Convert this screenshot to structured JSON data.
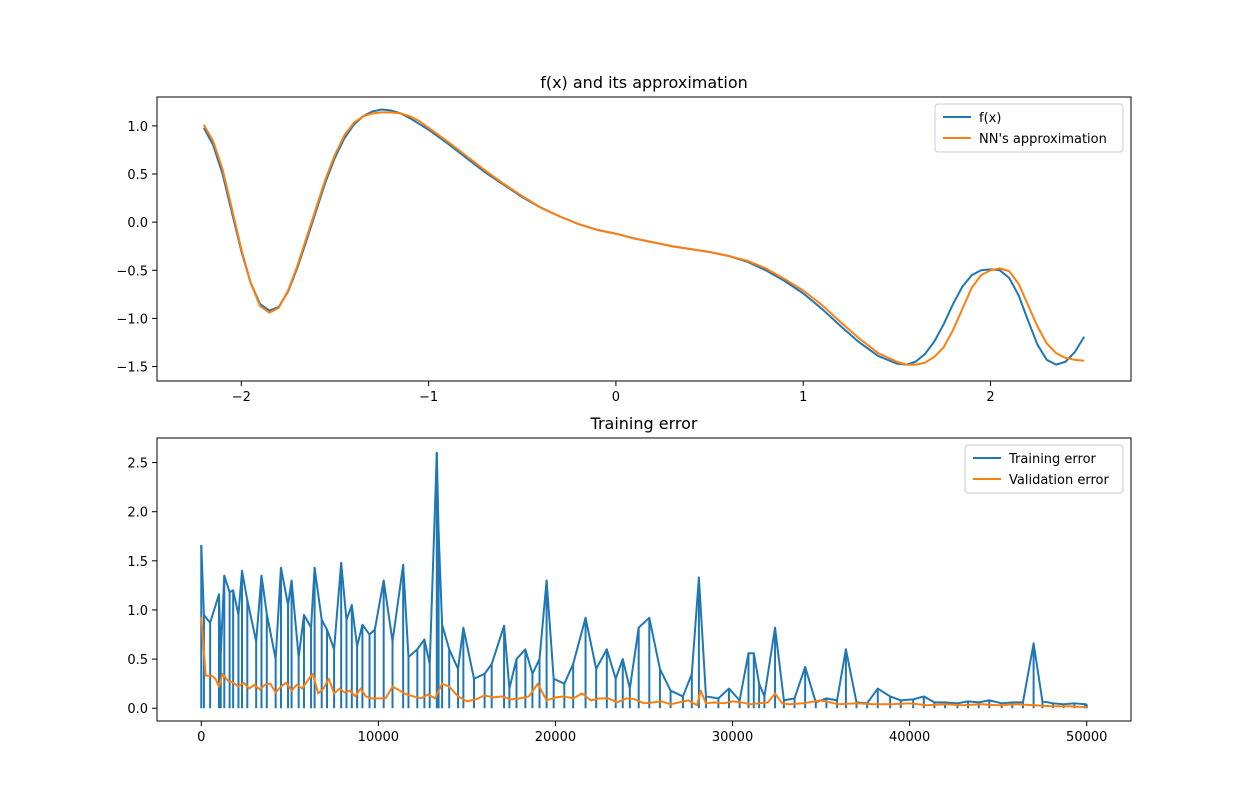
{
  "chart_data": [
    {
      "type": "line",
      "title": "f(x) and its approximation",
      "xlabel": "",
      "ylabel": "",
      "xlim": [
        -2.45,
        2.75
      ],
      "ylim": [
        -1.65,
        1.3
      ],
      "xticks": [
        -2,
        -1,
        0,
        1,
        2
      ],
      "xtick_labels": [
        "−2",
        "−1",
        "0",
        "1",
        "2"
      ],
      "yticks": [
        1.0,
        0.5,
        0.0,
        -0.5,
        -1.0,
        -1.5
      ],
      "ytick_labels": [
        "1.0",
        "0.5",
        "0.0",
        "−0.5",
        "−1.0",
        "−1.5"
      ],
      "legend_position": "top-right",
      "grid": false,
      "series": [
        {
          "name": "f(x)",
          "color": "#1f77b4",
          "x": [
            -2.2,
            -2.15,
            -2.1,
            -2.05,
            -2.0,
            -1.95,
            -1.9,
            -1.85,
            -1.8,
            -1.75,
            -1.7,
            -1.65,
            -1.6,
            -1.55,
            -1.5,
            -1.45,
            -1.4,
            -1.35,
            -1.3,
            -1.25,
            -1.2,
            -1.15,
            -1.1,
            -1.05,
            -1.0,
            -0.9,
            -0.8,
            -0.7,
            -0.6,
            -0.5,
            -0.4,
            -0.3,
            -0.2,
            -0.1,
            0.0,
            0.1,
            0.2,
            0.3,
            0.4,
            0.5,
            0.6,
            0.7,
            0.8,
            0.9,
            1.0,
            1.1,
            1.2,
            1.3,
            1.4,
            1.5,
            1.55,
            1.6,
            1.65,
            1.7,
            1.75,
            1.8,
            1.85,
            1.9,
            1.95,
            2.0,
            2.05,
            2.1,
            2.15,
            2.2,
            2.25,
            2.3,
            2.35,
            2.4,
            2.45,
            2.5
          ],
          "y": [
            0.98,
            0.8,
            0.5,
            0.1,
            -0.3,
            -0.63,
            -0.85,
            -0.92,
            -0.88,
            -0.72,
            -0.47,
            -0.18,
            0.12,
            0.42,
            0.67,
            0.87,
            1.01,
            1.1,
            1.15,
            1.17,
            1.16,
            1.13,
            1.08,
            1.02,
            0.96,
            0.82,
            0.67,
            0.52,
            0.39,
            0.26,
            0.15,
            0.06,
            -0.02,
            -0.08,
            -0.12,
            -0.17,
            -0.21,
            -0.25,
            -0.28,
            -0.31,
            -0.35,
            -0.41,
            -0.5,
            -0.61,
            -0.74,
            -0.9,
            -1.08,
            -1.25,
            -1.39,
            -1.47,
            -1.48,
            -1.45,
            -1.37,
            -1.24,
            -1.06,
            -0.85,
            -0.67,
            -0.55,
            -0.5,
            -0.49,
            -0.5,
            -0.58,
            -0.76,
            -1.02,
            -1.27,
            -1.43,
            -1.48,
            -1.45,
            -1.35,
            -1.19
          ]
        },
        {
          "name": "NN's approximation",
          "color": "#ff7f0e",
          "x": [
            -2.2,
            -2.15,
            -2.1,
            -2.05,
            -2.0,
            -1.95,
            -1.9,
            -1.85,
            -1.8,
            -1.75,
            -1.7,
            -1.65,
            -1.6,
            -1.55,
            -1.5,
            -1.45,
            -1.4,
            -1.35,
            -1.3,
            -1.25,
            -1.2,
            -1.15,
            -1.1,
            -1.05,
            -1.0,
            -0.9,
            -0.8,
            -0.7,
            -0.6,
            -0.5,
            -0.4,
            -0.3,
            -0.2,
            -0.1,
            0.0,
            0.1,
            0.2,
            0.3,
            0.4,
            0.5,
            0.6,
            0.7,
            0.8,
            0.9,
            1.0,
            1.1,
            1.2,
            1.3,
            1.4,
            1.5,
            1.55,
            1.6,
            1.65,
            1.7,
            1.75,
            1.8,
            1.85,
            1.9,
            1.95,
            2.0,
            2.05,
            2.1,
            2.15,
            2.2,
            2.25,
            2.3,
            2.35,
            2.4,
            2.45,
            2.5
          ],
          "y": [
            1.01,
            0.84,
            0.55,
            0.14,
            -0.28,
            -0.63,
            -0.87,
            -0.94,
            -0.89,
            -0.71,
            -0.45,
            -0.15,
            0.15,
            0.45,
            0.7,
            0.9,
            1.03,
            1.1,
            1.13,
            1.14,
            1.14,
            1.13,
            1.1,
            1.05,
            0.98,
            0.84,
            0.69,
            0.54,
            0.4,
            0.27,
            0.15,
            0.06,
            -0.02,
            -0.08,
            -0.12,
            -0.17,
            -0.21,
            -0.25,
            -0.28,
            -0.31,
            -0.35,
            -0.4,
            -0.48,
            -0.59,
            -0.71,
            -0.86,
            -1.04,
            -1.21,
            -1.36,
            -1.45,
            -1.48,
            -1.48,
            -1.46,
            -1.4,
            -1.3,
            -1.12,
            -0.9,
            -0.68,
            -0.55,
            -0.5,
            -0.48,
            -0.51,
            -0.64,
            -0.86,
            -1.08,
            -1.26,
            -1.36,
            -1.41,
            -1.43,
            -1.44
          ]
        }
      ]
    },
    {
      "type": "line",
      "title": "Training error",
      "xlabel": "",
      "ylabel": "",
      "xlim": [
        -2500,
        52500
      ],
      "ylim": [
        -0.13,
        2.75
      ],
      "xticks": [
        0,
        10000,
        20000,
        30000,
        40000,
        50000
      ],
      "xtick_labels": [
        "0",
        "10000",
        "20000",
        "30000",
        "40000",
        "50000"
      ],
      "yticks": [
        0.0,
        0.5,
        1.0,
        1.5,
        2.0,
        2.5
      ],
      "ytick_labels": [
        "0.0",
        "0.5",
        "1.0",
        "1.5",
        "2.0",
        "2.5"
      ],
      "legend_position": "top-right",
      "grid": false,
      "series": [
        {
          "name": "Training error",
          "color": "#1f77b4",
          "x": [
            0,
            150,
            500,
            1000,
            1100,
            1300,
            1600,
            1800,
            2100,
            2300,
            2600,
            3100,
            3400,
            3700,
            4200,
            4500,
            4900,
            5100,
            5500,
            5800,
            6200,
            6400,
            6800,
            7100,
            7500,
            7900,
            8200,
            8500,
            8800,
            9100,
            9500,
            9800,
            10300,
            10800,
            11400,
            11700,
            12200,
            12600,
            12900,
            13300,
            13400,
            13600,
            14000,
            14500,
            14800,
            15400,
            16000,
            16400,
            17100,
            17400,
            17800,
            18300,
            18700,
            19100,
            19500,
            19900,
            20500,
            21000,
            21700,
            22300,
            22900,
            23400,
            23800,
            24200,
            24700,
            25300,
            25900,
            26500,
            27200,
            27700,
            28100,
            28500,
            29200,
            29800,
            30400,
            30900,
            31200,
            31500,
            31800,
            32400,
            32900,
            33500,
            34100,
            34700,
            35300,
            35900,
            36400,
            37000,
            37600,
            38200,
            38900,
            39500,
            40200,
            40800,
            41400,
            42000,
            42700,
            43300,
            43900,
            44500,
            45200,
            45800,
            46400,
            47000,
            47500,
            48100,
            48700,
            49300,
            49900,
            50000
          ],
          "y": [
            1.66,
            0.95,
            0.87,
            1.16,
            0.55,
            1.35,
            1.18,
            1.2,
            0.95,
            1.4,
            1.1,
            0.68,
            1.35,
            0.96,
            0.5,
            1.43,
            1.05,
            1.3,
            0.52,
            0.95,
            0.82,
            1.43,
            0.9,
            0.8,
            0.6,
            1.48,
            0.9,
            1.05,
            0.63,
            0.85,
            0.75,
            0.8,
            1.3,
            0.68,
            1.46,
            0.52,
            0.6,
            0.7,
            0.45,
            2.6,
            1.8,
            0.85,
            0.6,
            0.4,
            0.82,
            0.3,
            0.35,
            0.45,
            0.84,
            0.2,
            0.5,
            0.6,
            0.35,
            0.5,
            1.3,
            0.3,
            0.25,
            0.45,
            0.92,
            0.4,
            0.6,
            0.3,
            0.5,
            0.2,
            0.82,
            0.92,
            0.4,
            0.18,
            0.12,
            0.35,
            1.33,
            0.12,
            0.1,
            0.2,
            0.08,
            0.56,
            0.56,
            0.25,
            0.12,
            0.82,
            0.08,
            0.1,
            0.42,
            0.06,
            0.1,
            0.08,
            0.6,
            0.06,
            0.05,
            0.2,
            0.12,
            0.08,
            0.09,
            0.12,
            0.06,
            0.06,
            0.05,
            0.07,
            0.06,
            0.08,
            0.05,
            0.06,
            0.06,
            0.66,
            0.07,
            0.05,
            0.04,
            0.05,
            0.04,
            0.04
          ]
        },
        {
          "name": "Validation error",
          "color": "#ff7f0e",
          "x": [
            0,
            250,
            600,
            800,
            1000,
            1200,
            1500,
            1800,
            2100,
            2400,
            2700,
            3000,
            3300,
            3600,
            3900,
            4200,
            4500,
            4800,
            5100,
            5400,
            5700,
            6000,
            6300,
            6600,
            6900,
            7200,
            7500,
            7800,
            8100,
            8400,
            8700,
            9000,
            9300,
            9600,
            10000,
            10400,
            10800,
            11200,
            11600,
            12000,
            12400,
            12800,
            13200,
            13600,
            14000,
            14500,
            15000,
            15500,
            16000,
            16500,
            17000,
            17500,
            18000,
            18500,
            19000,
            19500,
            20000,
            20500,
            21000,
            21500,
            22000,
            22500,
            23000,
            23500,
            24000,
            24500,
            25000,
            25500,
            26000,
            26500,
            27000,
            27500,
            28000,
            28200,
            28500,
            29000,
            29500,
            30000,
            30500,
            31000,
            31500,
            32000,
            32400,
            32800,
            33200,
            34000,
            35000,
            36000,
            37000,
            38000,
            39000,
            40000,
            41000,
            42000,
            43000,
            44000,
            45000,
            46000,
            47000,
            48000,
            49000,
            50000
          ],
          "y": [
            0.93,
            0.33,
            0.33,
            0.3,
            0.22,
            0.35,
            0.28,
            0.26,
            0.22,
            0.26,
            0.2,
            0.24,
            0.19,
            0.24,
            0.25,
            0.16,
            0.22,
            0.26,
            0.18,
            0.24,
            0.2,
            0.28,
            0.35,
            0.15,
            0.2,
            0.3,
            0.15,
            0.2,
            0.16,
            0.18,
            0.12,
            0.2,
            0.12,
            0.1,
            0.1,
            0.1,
            0.22,
            0.18,
            0.14,
            0.12,
            0.1,
            0.14,
            0.1,
            0.25,
            0.22,
            0.12,
            0.07,
            0.09,
            0.13,
            0.11,
            0.12,
            0.09,
            0.1,
            0.12,
            0.25,
            0.08,
            0.11,
            0.12,
            0.1,
            0.15,
            0.08,
            0.1,
            0.1,
            0.06,
            0.1,
            0.09,
            0.05,
            0.06,
            0.07,
            0.04,
            0.06,
            0.08,
            0.03,
            0.18,
            0.05,
            0.06,
            0.05,
            0.07,
            0.06,
            0.04,
            0.05,
            0.06,
            0.15,
            0.05,
            0.04,
            0.05,
            0.08,
            0.04,
            0.05,
            0.04,
            0.04,
            0.05,
            0.03,
            0.04,
            0.03,
            0.04,
            0.03,
            0.04,
            0.03,
            0.02,
            0.02,
            0.01
          ]
        }
      ]
    }
  ]
}
